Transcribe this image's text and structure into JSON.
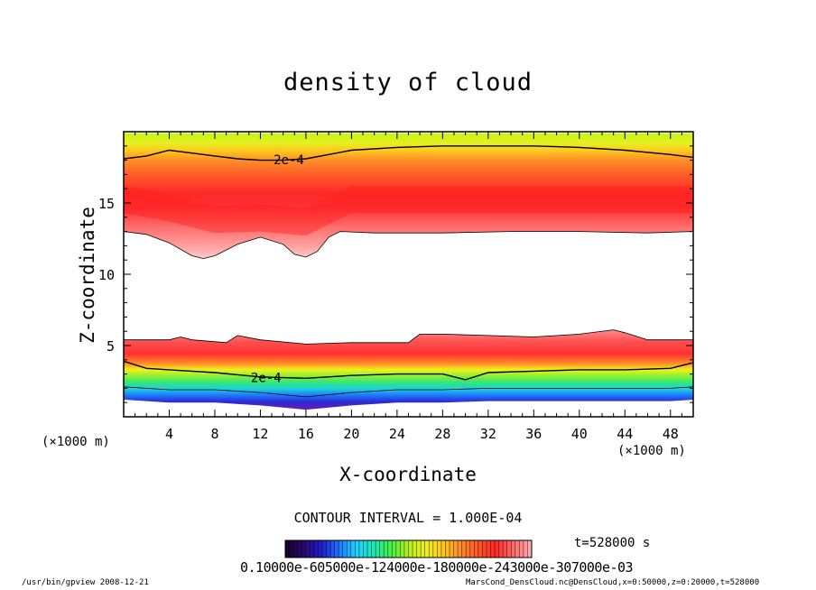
{
  "chart_data": {
    "type": "heatmap",
    "title": "density of cloud",
    "xlabel": "X-coordinate",
    "ylabel": "Z-coordinate",
    "x_unit_label": "(×1000 m)",
    "xlim": [
      0,
      50
    ],
    "ylim": [
      0,
      20
    ],
    "x_ticks": [
      4,
      8,
      12,
      16,
      20,
      24,
      28,
      32,
      36,
      40,
      44,
      48
    ],
    "y_ticks": [
      5,
      10,
      15
    ],
    "contour_interval_label": "CONTOUR INTERVAL = 1.000E-04",
    "contour_label": "2e-4",
    "contour_level": 0.0002,
    "time_label": "t=528000 s",
    "colorbar_label_text": "0.10000e-605000e-124000e-180000e-243000e-307000e-03",
    "colorbar_colors": [
      "#1a0030",
      "#2a0a70",
      "#1e1ed0",
      "#1e78ff",
      "#1ed2ff",
      "#1ee6b4",
      "#46f046",
      "#b4f01e",
      "#f0f01e",
      "#ffc81e",
      "#ff8c28",
      "#ff5a28",
      "#ff2828",
      "#ff6464",
      "#ffaaaa"
    ],
    "upper_layer": {
      "top_boundary": [
        [
          0,
          19.9
        ],
        [
          50,
          19.9
        ]
      ],
      "contour_2e4": [
        [
          0,
          18.1
        ],
        [
          2,
          18.3
        ],
        [
          4,
          18.7
        ],
        [
          6,
          18.5
        ],
        [
          8,
          18.3
        ],
        [
          10,
          18.1
        ],
        [
          12,
          18.0
        ],
        [
          14,
          18.0
        ],
        [
          16,
          18.1
        ],
        [
          18,
          18.4
        ],
        [
          20,
          18.7
        ],
        [
          24,
          18.9
        ],
        [
          28,
          19.0
        ],
        [
          32,
          19.0
        ],
        [
          36,
          19.0
        ],
        [
          40,
          18.9
        ],
        [
          44,
          18.7
        ],
        [
          48,
          18.4
        ],
        [
          50,
          18.2
        ]
      ],
      "bottom_boundary": [
        [
          0,
          13.0
        ],
        [
          2,
          12.8
        ],
        [
          4,
          12.2
        ],
        [
          6,
          11.3
        ],
        [
          7,
          11.1
        ],
        [
          8,
          11.3
        ],
        [
          10,
          12.1
        ],
        [
          12,
          12.6
        ],
        [
          14,
          12.1
        ],
        [
          15,
          11.4
        ],
        [
          16,
          11.2
        ],
        [
          17,
          11.6
        ],
        [
          18,
          12.6
        ],
        [
          19,
          13.0
        ],
        [
          22,
          12.9
        ],
        [
          28,
          12.9
        ],
        [
          34,
          13.0
        ],
        [
          40,
          13.0
        ],
        [
          46,
          12.9
        ],
        [
          50,
          13.0
        ]
      ],
      "peak_height": [
        [
          0,
          15.2
        ],
        [
          4,
          14.6
        ],
        [
          8,
          13.8
        ],
        [
          12,
          13.9
        ],
        [
          16,
          13.6
        ],
        [
          20,
          15.2
        ],
        [
          28,
          15.2
        ],
        [
          40,
          15.2
        ],
        [
          50,
          15.2
        ]
      ]
    },
    "lower_layer": {
      "top_boundary": [
        [
          0,
          5.4
        ],
        [
          4,
          5.4
        ],
        [
          5,
          5.6
        ],
        [
          6,
          5.4
        ],
        [
          9,
          5.2
        ],
        [
          10,
          5.7
        ],
        [
          12,
          5.4
        ],
        [
          16,
          5.1
        ],
        [
          20,
          5.2
        ],
        [
          25,
          5.2
        ],
        [
          26,
          5.8
        ],
        [
          28,
          5.8
        ],
        [
          32,
          5.7
        ],
        [
          36,
          5.6
        ],
        [
          40,
          5.8
        ],
        [
          43,
          6.1
        ],
        [
          44,
          5.9
        ],
        [
          46,
          5.4
        ],
        [
          48,
          5.4
        ],
        [
          50,
          5.4
        ]
      ],
      "contour_2e4": [
        [
          0,
          3.9
        ],
        [
          2,
          3.4
        ],
        [
          4,
          3.3
        ],
        [
          8,
          3.1
        ],
        [
          12,
          2.8
        ],
        [
          16,
          2.7
        ],
        [
          20,
          2.9
        ],
        [
          24,
          3.0
        ],
        [
          28,
          3.0
        ],
        [
          30,
          2.6
        ],
        [
          32,
          3.1
        ],
        [
          36,
          3.2
        ],
        [
          40,
          3.3
        ],
        [
          44,
          3.3
        ],
        [
          48,
          3.4
        ],
        [
          50,
          3.8
        ]
      ],
      "bottom_boundary": [
        [
          0,
          1.2
        ],
        [
          4,
          1.0
        ],
        [
          8,
          1.0
        ],
        [
          12,
          0.8
        ],
        [
          16,
          0.5
        ],
        [
          20,
          0.8
        ],
        [
          24,
          1.0
        ],
        [
          28,
          1.0
        ],
        [
          32,
          1.1
        ],
        [
          36,
          1.1
        ],
        [
          40,
          1.1
        ],
        [
          44,
          1.1
        ],
        [
          48,
          1.1
        ],
        [
          50,
          1.2
        ]
      ]
    }
  },
  "footer": {
    "left": "/usr/bin/gpview   2008-12-21",
    "right": "MarsCond_DensCloud.nc@DensCloud,x=0:50000,z=0:20000,t=528000"
  }
}
